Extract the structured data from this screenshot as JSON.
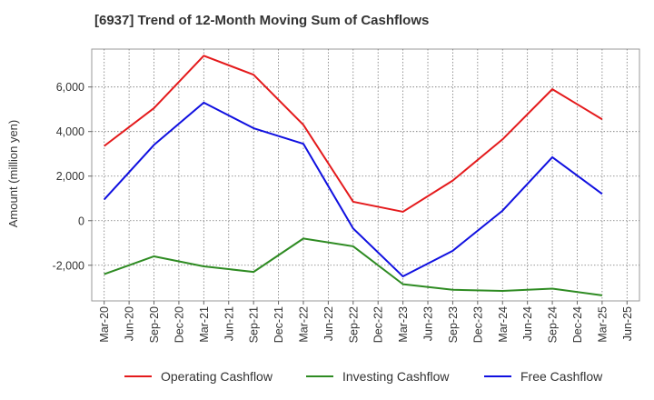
{
  "chart_data": {
    "type": "line",
    "title": "[6937]  Trend of 12-Month Moving Sum of Cashflows",
    "ylabel": "Amount (million yen)",
    "xlabel": "",
    "x_ticks": [
      "Mar-20",
      "Jun-20",
      "Sep-20",
      "Dec-20",
      "Mar-21",
      "Jun-21",
      "Sep-21",
      "Dec-21",
      "Mar-22",
      "Jun-22",
      "Sep-22",
      "Dec-22",
      "Mar-23",
      "Jun-23",
      "Sep-23",
      "Dec-23",
      "Mar-24",
      "Jun-24",
      "Sep-24",
      "Dec-24",
      "Mar-25",
      "Jun-25"
    ],
    "x": [
      "Mar-20",
      "Sep-20",
      "Mar-21",
      "Sep-21",
      "Mar-22",
      "Sep-22",
      "Mar-23",
      "Sep-23",
      "Mar-24",
      "Sep-24",
      "Mar-25"
    ],
    "y_ticks": [
      6000,
      4000,
      2000,
      0,
      -2000
    ],
    "y_tick_labels": [
      "6,000",
      "4,000",
      "2,000",
      "0",
      "-2,000"
    ],
    "ylim": [
      -3600,
      7700
    ],
    "grid": true,
    "legend_position": "bottom",
    "series": [
      {
        "name": "Operating Cashflow",
        "color": "#e41a1c",
        "values": [
          3350,
          5050,
          7400,
          6550,
          4300,
          850,
          400,
          1800,
          3650,
          5900,
          4550
        ]
      },
      {
        "name": "Investing Cashflow",
        "color": "#2e8b22",
        "values": [
          -2400,
          -1600,
          -2050,
          -2300,
          -800,
          -1150,
          -2850,
          -3100,
          -3150,
          -3050,
          -3350
        ]
      },
      {
        "name": "Free Cashflow",
        "color": "#1010e0",
        "values": [
          950,
          3400,
          5300,
          4150,
          3450,
          -350,
          -2500,
          -1350,
          450,
          2850,
          1200
        ]
      }
    ]
  }
}
